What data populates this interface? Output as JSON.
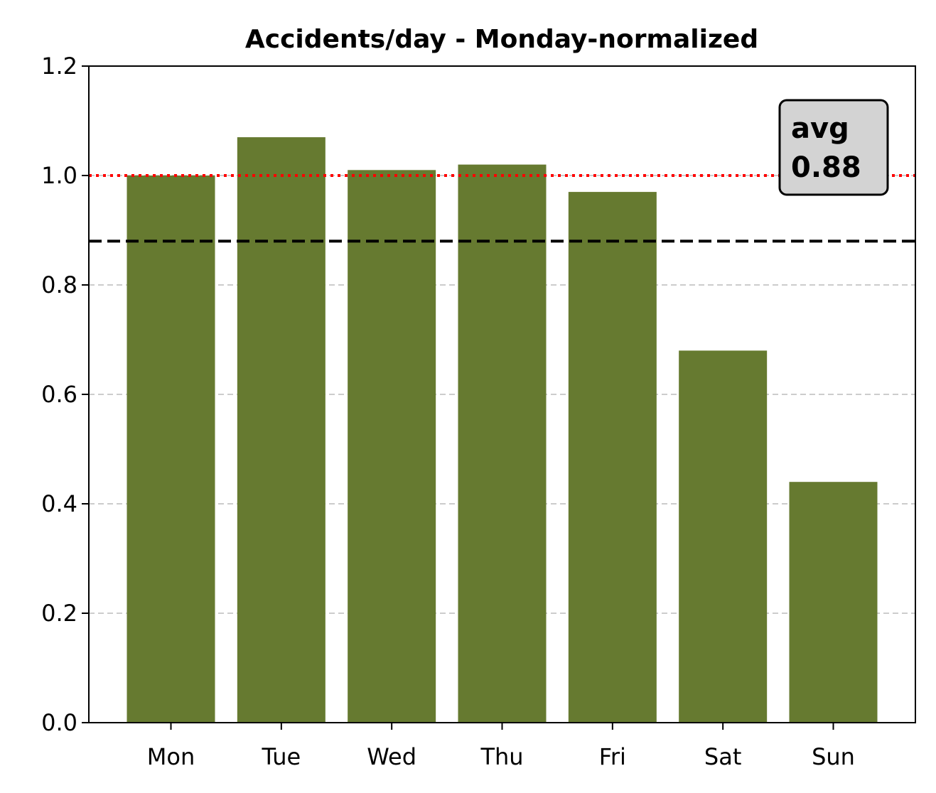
{
  "chart_data": {
    "type": "bar",
    "title": "Accidents/day - Monday-normalized",
    "xlabel": "",
    "ylabel": "",
    "categories": [
      "Mon",
      "Tue",
      "Wed",
      "Thu",
      "Fri",
      "Sat",
      "Sun"
    ],
    "values": [
      1.0,
      1.07,
      1.01,
      1.02,
      0.97,
      0.68,
      0.44
    ],
    "ylim": [
      0,
      1.2
    ],
    "yticks": [
      0.0,
      0.2,
      0.4,
      0.6,
      0.8,
      1.0,
      1.2
    ],
    "ytick_labels": [
      "0.0",
      "0.2",
      "0.4",
      "0.6",
      "0.8",
      "1.0",
      "1.2"
    ],
    "grid": "y-dashed",
    "bar_color": "#667a30",
    "reference_line": {
      "value": 1.0,
      "style": "dotted",
      "color": "#ff0000"
    },
    "average_line": {
      "value": 0.88,
      "style": "dashed",
      "color": "#000000"
    },
    "annotation": {
      "line1": "avg",
      "line2": "0.88",
      "box_color": "#d3d3d3",
      "position": "top-right"
    }
  }
}
